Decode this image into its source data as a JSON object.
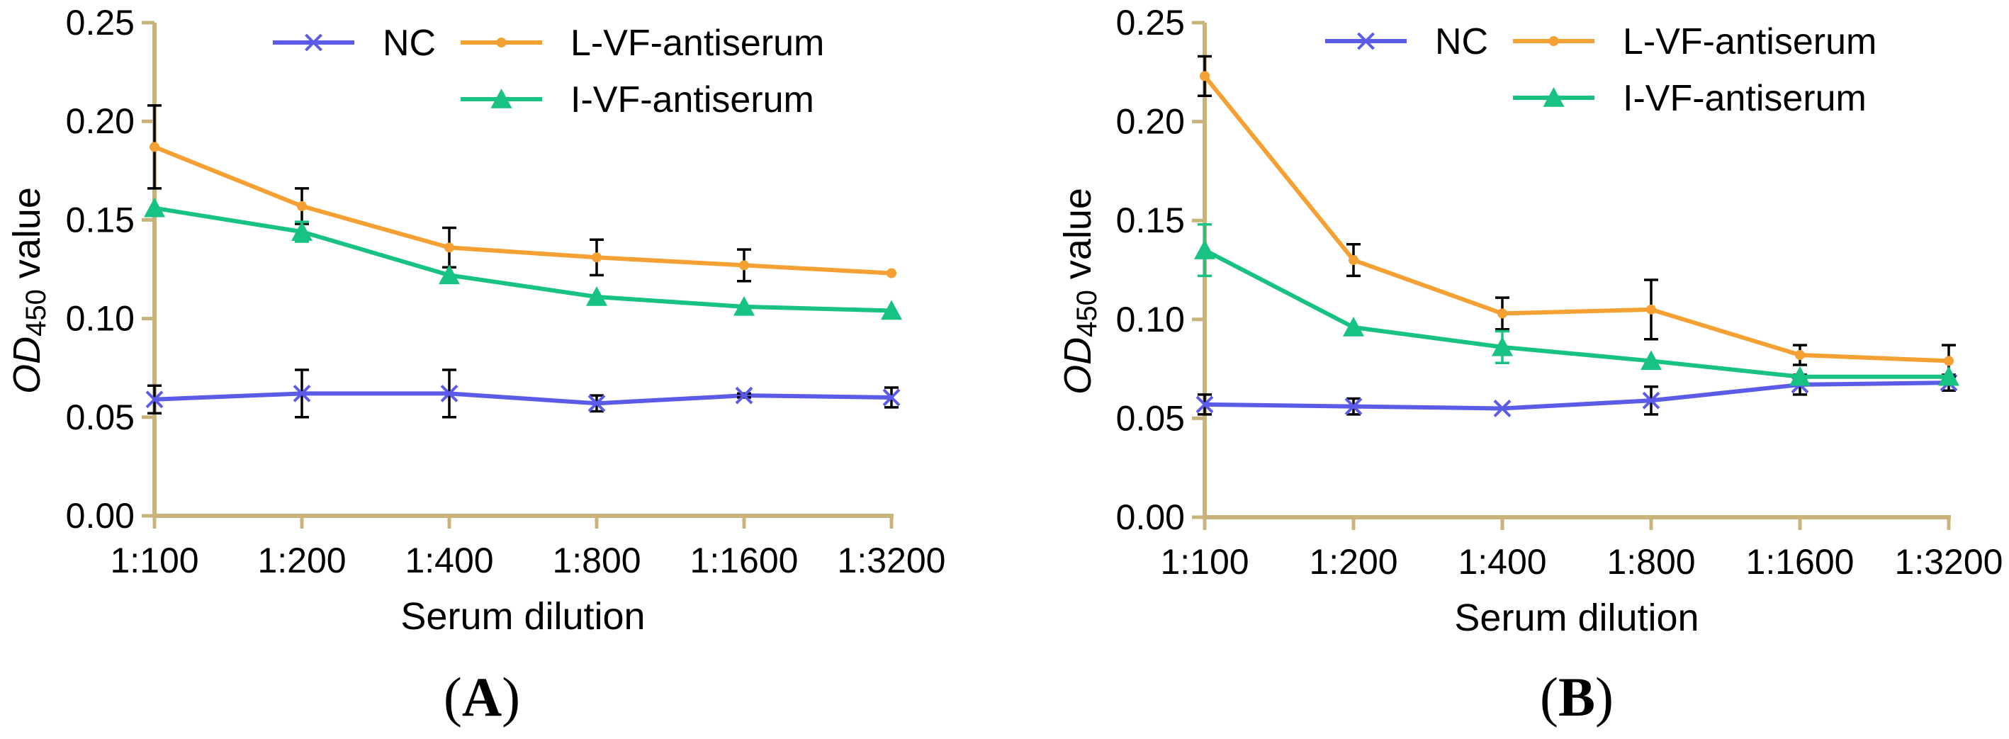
{
  "chart_data": [
    {
      "panel": "A",
      "panel_label": "A",
      "type": "line",
      "xlabel": "Serum dilution",
      "ylabel_italic": "OD",
      "ylabel_sub": "450",
      "ylabel_rest": " value",
      "categories": [
        "1:100",
        "1:200",
        "1:400",
        "1:800",
        "1:1600",
        "1:3200"
      ],
      "ylim": [
        0,
        0.25
      ],
      "yticks": [
        "0.00",
        "0.05",
        "0.10",
        "0.15",
        "0.20",
        "0.25"
      ],
      "colors": {
        "axis": "#c8b47a",
        "NC": "#5b5be8",
        "L-VF-antiserum": "#f5a033",
        "I-VF-antiserum": "#17c282"
      },
      "series": [
        {
          "name": "NC",
          "marker": "x",
          "values": [
            0.059,
            0.062,
            0.062,
            0.057,
            0.061,
            0.06
          ],
          "errors": [
            0.007,
            0.012,
            0.012,
            0.004,
            0.001,
            0.005
          ]
        },
        {
          "name": "L-VF-antiserum",
          "marker": "dot",
          "values": [
            0.187,
            0.157,
            0.136,
            0.131,
            0.127,
            0.123
          ],
          "errors": [
            0.021,
            0.009,
            0.01,
            0.009,
            0.008,
            0.0
          ]
        },
        {
          "name": "I-VF-antiserum",
          "marker": "triangle",
          "values": [
            0.156,
            0.144,
            0.122,
            0.111,
            0.106,
            0.104
          ],
          "errors": [
            0.0,
            0.005,
            0.0,
            0.0,
            0.0,
            0.0
          ]
        }
      ]
    },
    {
      "panel": "B",
      "panel_label": "B",
      "type": "line",
      "xlabel": "Serum dilution",
      "ylabel_italic": "OD",
      "ylabel_sub": "450",
      "ylabel_rest": " value",
      "categories": [
        "1:100",
        "1:200",
        "1:400",
        "1:800",
        "1:1600",
        "1:3200"
      ],
      "ylim": [
        0,
        0.25
      ],
      "yticks": [
        "0.00",
        "0.05",
        "0.10",
        "0.15",
        "0.20",
        "0.25"
      ],
      "colors": {
        "axis": "#c8b47a",
        "NC": "#5b5be8",
        "L-VF-antiserum": "#f5a033",
        "I-VF-antiserum": "#17c282"
      },
      "series": [
        {
          "name": "NC",
          "marker": "x",
          "values": [
            0.057,
            0.056,
            0.055,
            0.059,
            0.067,
            0.068
          ],
          "errors": [
            0.005,
            0.004,
            0.0,
            0.007,
            0.005,
            0.004
          ]
        },
        {
          "name": "L-VF-antiserum",
          "marker": "dot",
          "values": [
            0.223,
            0.13,
            0.103,
            0.105,
            0.082,
            0.079
          ],
          "errors": [
            0.01,
            0.008,
            0.008,
            0.015,
            0.005,
            0.008
          ]
        },
        {
          "name": "I-VF-antiserum",
          "marker": "triangle",
          "values": [
            0.135,
            0.096,
            0.086,
            0.079,
            0.071,
            0.071
          ],
          "errors": [
            0.013,
            0.0,
            0.008,
            0.0,
            0.0,
            0.0
          ]
        }
      ]
    }
  ]
}
